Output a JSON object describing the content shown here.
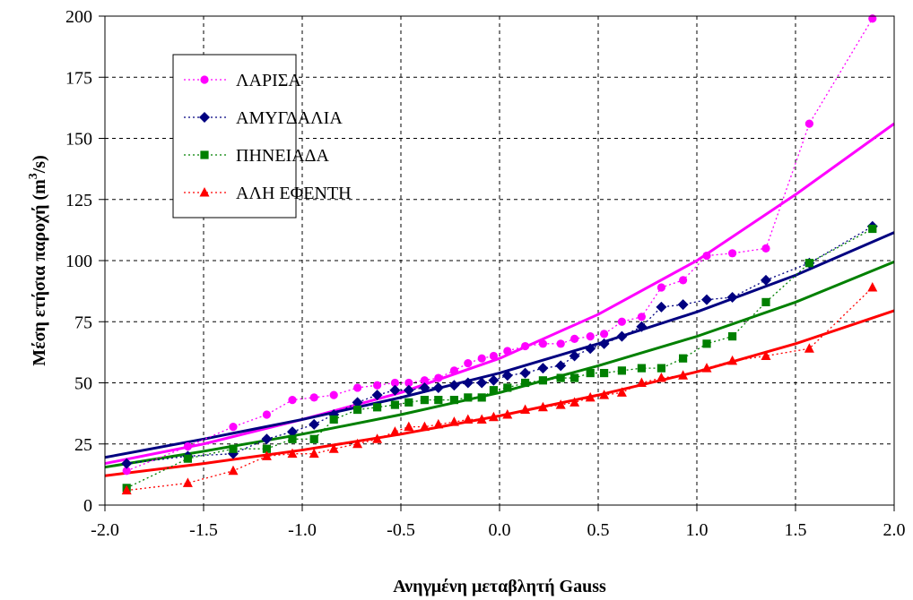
{
  "chart_data": {
    "type": "line",
    "title": "",
    "xlabel": "Ανηγμένη μεταβλητή Gauss",
    "ylabel_main": "Μέση ετήσια παροχή (m",
    "ylabel_sup": "3",
    "ylabel_end": "/s)",
    "xlim": [
      -2.0,
      2.0
    ],
    "ylim": [
      0,
      200
    ],
    "xticks": [
      "-2.0",
      "-1.5",
      "-1.0",
      "-0.5",
      "0.0",
      "0.5",
      "1.0",
      "1.5",
      "2.0"
    ],
    "yticks": [
      "0",
      "25",
      "50",
      "75",
      "100",
      "125",
      "150",
      "175",
      "200"
    ],
    "grid": true,
    "legend_position": "top-left",
    "series": [
      {
        "name": "ΛΑΡΙΣΑ",
        "color": "#ff00ff",
        "marker": "circle",
        "points": [
          [
            -1.89,
            14
          ],
          [
            -1.58,
            24
          ],
          [
            -1.35,
            32
          ],
          [
            -1.18,
            37
          ],
          [
            -1.05,
            43
          ],
          [
            -0.94,
            44
          ],
          [
            -0.84,
            45
          ],
          [
            -0.72,
            48
          ],
          [
            -0.62,
            49
          ],
          [
            -0.53,
            50
          ],
          [
            -0.46,
            50
          ],
          [
            -0.38,
            51
          ],
          [
            -0.31,
            52
          ],
          [
            -0.23,
            55
          ],
          [
            -0.16,
            58
          ],
          [
            -0.09,
            60
          ],
          [
            -0.03,
            61
          ],
          [
            0.04,
            63
          ],
          [
            0.13,
            65
          ],
          [
            0.22,
            66
          ],
          [
            0.31,
            66
          ],
          [
            0.38,
            68
          ],
          [
            0.46,
            69
          ],
          [
            0.53,
            70
          ],
          [
            0.62,
            75
          ],
          [
            0.72,
            77
          ],
          [
            0.82,
            89
          ],
          [
            0.93,
            92
          ],
          [
            1.05,
            102
          ],
          [
            1.18,
            103
          ],
          [
            1.35,
            105
          ],
          [
            1.57,
            156
          ],
          [
            1.89,
            199
          ]
        ],
        "fit": [
          [
            -2.0,
            17
          ],
          [
            -1.5,
            25
          ],
          [
            -1.0,
            35
          ],
          [
            -0.5,
            46
          ],
          [
            0.0,
            60
          ],
          [
            0.5,
            78
          ],
          [
            1.0,
            100
          ],
          [
            1.5,
            127
          ],
          [
            2.0,
            156
          ]
        ]
      },
      {
        "name": "ΑΜΥΓΔΑΛΙΑ",
        "color": "#000080",
        "marker": "diamond",
        "points": [
          [
            -1.89,
            17
          ],
          [
            -1.58,
            20
          ],
          [
            -1.35,
            21
          ],
          [
            -1.18,
            27
          ],
          [
            -1.05,
            30
          ],
          [
            -0.94,
            33
          ],
          [
            -0.84,
            37
          ],
          [
            -0.72,
            42
          ],
          [
            -0.62,
            45
          ],
          [
            -0.53,
            47
          ],
          [
            -0.46,
            47
          ],
          [
            -0.38,
            48
          ],
          [
            -0.31,
            48
          ],
          [
            -0.23,
            49
          ],
          [
            -0.16,
            50
          ],
          [
            -0.09,
            50
          ],
          [
            -0.03,
            51
          ],
          [
            0.04,
            53
          ],
          [
            0.13,
            54
          ],
          [
            0.22,
            56
          ],
          [
            0.31,
            57
          ],
          [
            0.38,
            61
          ],
          [
            0.46,
            64
          ],
          [
            0.53,
            66
          ],
          [
            0.62,
            69
          ],
          [
            0.72,
            73
          ],
          [
            0.82,
            81
          ],
          [
            0.93,
            82
          ],
          [
            1.05,
            84
          ],
          [
            1.18,
            85
          ],
          [
            1.35,
            92
          ],
          [
            1.57,
            99
          ],
          [
            1.89,
            114
          ]
        ],
        "fit": [
          [
            -2.0,
            19.5
          ],
          [
            -1.5,
            27
          ],
          [
            -1.0,
            35
          ],
          [
            -0.5,
            44
          ],
          [
            0.0,
            54
          ],
          [
            0.5,
            66
          ],
          [
            1.0,
            79
          ],
          [
            1.5,
            94
          ],
          [
            2.0,
            111.5
          ]
        ]
      },
      {
        "name": "ΠΗΝΕΙΑΔΑ",
        "color": "#008000",
        "marker": "square",
        "points": [
          [
            -1.89,
            7
          ],
          [
            -1.58,
            19
          ],
          [
            -1.35,
            23
          ],
          [
            -1.18,
            23
          ],
          [
            -1.05,
            27
          ],
          [
            -0.94,
            27
          ],
          [
            -0.84,
            35
          ],
          [
            -0.72,
            39
          ],
          [
            -0.62,
            40
          ],
          [
            -0.53,
            41
          ],
          [
            -0.46,
            42
          ],
          [
            -0.38,
            43
          ],
          [
            -0.31,
            43
          ],
          [
            -0.23,
            43
          ],
          [
            -0.16,
            44
          ],
          [
            -0.09,
            44
          ],
          [
            -0.03,
            47
          ],
          [
            0.04,
            48
          ],
          [
            0.13,
            50
          ],
          [
            0.22,
            51
          ],
          [
            0.31,
            52
          ],
          [
            0.38,
            52
          ],
          [
            0.46,
            54
          ],
          [
            0.53,
            54
          ],
          [
            0.62,
            55
          ],
          [
            0.72,
            56
          ],
          [
            0.82,
            56
          ],
          [
            0.93,
            60
          ],
          [
            1.05,
            66
          ],
          [
            1.18,
            69
          ],
          [
            1.35,
            83
          ],
          [
            1.57,
            99
          ],
          [
            1.89,
            113
          ]
        ],
        "fit": [
          [
            -2.0,
            15.5
          ],
          [
            -1.5,
            22
          ],
          [
            -1.0,
            29
          ],
          [
            -0.5,
            37
          ],
          [
            0.0,
            46
          ],
          [
            0.5,
            57
          ],
          [
            1.0,
            69
          ],
          [
            1.5,
            83
          ],
          [
            2.0,
            99.5
          ]
        ]
      },
      {
        "name": "ΑΛΗ ΕΦΕΝΤΗ",
        "color": "#ff0000",
        "marker": "triangle",
        "points": [
          [
            -1.89,
            6
          ],
          [
            -1.58,
            9
          ],
          [
            -1.35,
            14
          ],
          [
            -1.18,
            20
          ],
          [
            -1.05,
            21
          ],
          [
            -0.94,
            21
          ],
          [
            -0.84,
            23
          ],
          [
            -0.72,
            25
          ],
          [
            -0.62,
            27
          ],
          [
            -0.53,
            30
          ],
          [
            -0.46,
            32
          ],
          [
            -0.38,
            32
          ],
          [
            -0.31,
            33
          ],
          [
            -0.23,
            34
          ],
          [
            -0.16,
            35
          ],
          [
            -0.09,
            35
          ],
          [
            -0.03,
            36
          ],
          [
            0.04,
            37
          ],
          [
            0.13,
            39
          ],
          [
            0.22,
            40
          ],
          [
            0.31,
            41
          ],
          [
            0.38,
            42
          ],
          [
            0.46,
            44
          ],
          [
            0.53,
            45
          ],
          [
            0.62,
            46
          ],
          [
            0.72,
            50
          ],
          [
            0.82,
            52
          ],
          [
            0.93,
            53
          ],
          [
            1.05,
            56
          ],
          [
            1.18,
            59
          ],
          [
            1.35,
            61
          ],
          [
            1.57,
            64
          ],
          [
            1.89,
            89
          ]
        ],
        "fit": [
          [
            -2.0,
            12
          ],
          [
            -1.5,
            17
          ],
          [
            -1.0,
            22.5
          ],
          [
            -0.5,
            29
          ],
          [
            0.0,
            36.5
          ],
          [
            0.5,
            45
          ],
          [
            1.0,
            54.5
          ],
          [
            1.5,
            66
          ],
          [
            2.0,
            79.5
          ]
        ]
      }
    ]
  }
}
